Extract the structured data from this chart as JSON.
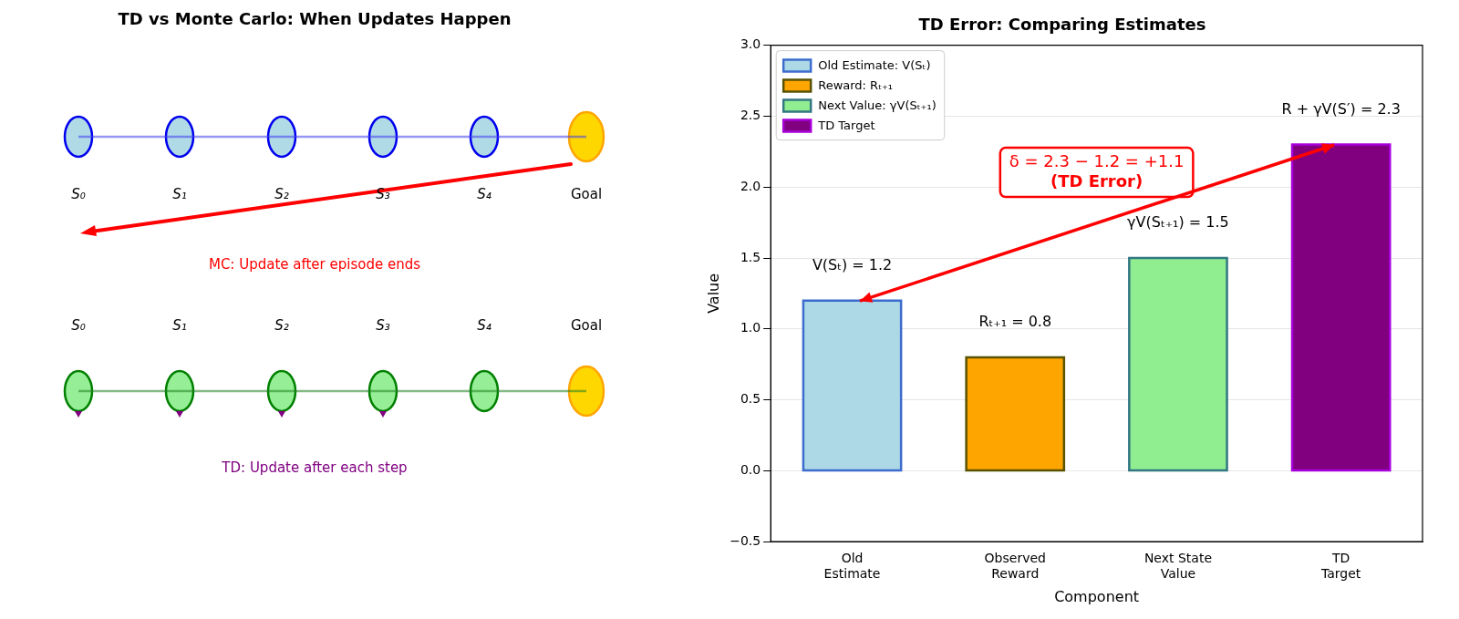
{
  "chart_data": [
    {
      "type": "other",
      "title": "TD vs Monte Carlo: When Updates Happen",
      "annotations": [
        "S₀",
        "S₁",
        "S₂",
        "S₃",
        "S₄",
        "Goal",
        "MC: Update after episode ends",
        "S₀",
        "S₁",
        "S₂",
        "S₃",
        "S₄",
        "Goal",
        "TD: Update after each step"
      ]
    },
    {
      "type": "bar",
      "title": "TD Error: Comparing Estimates",
      "xlabel": "Component",
      "ylabel": "Value",
      "categories": [
        "Old\nEstimate",
        "Observed\nReward",
        "Next State\nValue",
        "TD\nTarget"
      ],
      "series": [
        {
          "name": "Old Estimate: V(Sₜ)",
          "color": "#add8e6",
          "values": [
            1.2,
            null,
            null,
            null
          ],
          "value_labels": [
            "V(Sₜ) = 1.2",
            null,
            null,
            null
          ]
        },
        {
          "name": "Reward: Rₜ₊₁",
          "color": "#ffa500",
          "values": [
            null,
            0.8,
            null,
            null
          ],
          "value_labels": [
            null,
            "Rₜ₊₁ = 0.8",
            null,
            null
          ]
        },
        {
          "name": "Next Value: γV(Sₜ₊₁)",
          "color": "#90ee90",
          "values": [
            null,
            null,
            1.5,
            null
          ],
          "value_labels": [
            null,
            null,
            "γV(Sₜ₊₁) = 1.5",
            null
          ]
        },
        {
          "name": "TD Target",
          "color": "#800080",
          "values": [
            null,
            null,
            null,
            2.3
          ],
          "value_labels": [
            null,
            null,
            null,
            "R + γV(S′) = 2.3"
          ]
        }
      ],
      "ylim": [
        -0.5,
        3
      ],
      "yticks": [
        {
          "value": -0.5,
          "label": "−0.5"
        },
        {
          "value": 0,
          "label": "0.0"
        },
        {
          "value": 0.5,
          "label": "0.5"
        },
        {
          "value": 1,
          "label": "1.0"
        },
        {
          "value": 1.5,
          "label": "1.5"
        },
        {
          "value": 2,
          "label": "2.0"
        },
        {
          "value": 2.5,
          "label": "2.5"
        },
        {
          "value": 3,
          "label": "3.0"
        }
      ],
      "grid": "y",
      "legend": "top left",
      "annotations": [
        "δ = 2.3 − 1.2 = +1.1\n(TD Error)"
      ]
    }
  ]
}
